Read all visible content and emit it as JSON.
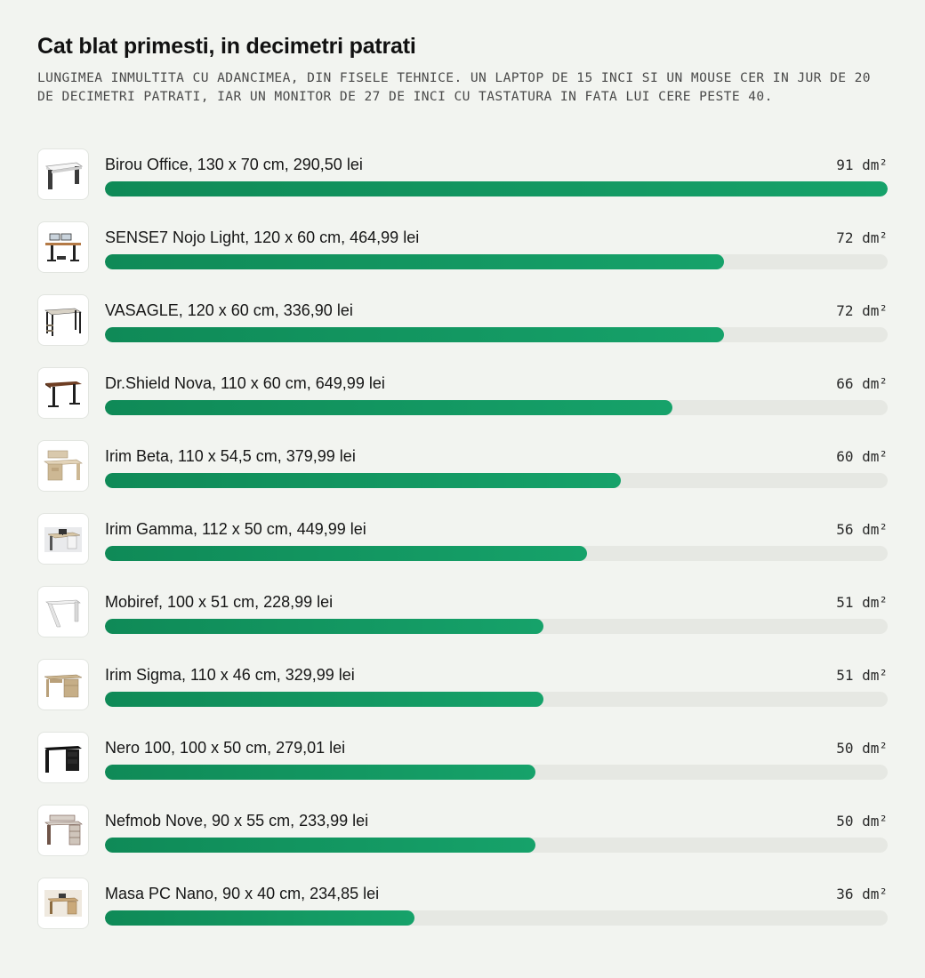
{
  "header": {
    "title": "Cat blat primesti, in decimetri patrati",
    "subtitle": "LUNGIMEA INMULTITA CU ADANCIMEA, DIN FISELE TEHNICE. UN LAPTOP DE 15 INCI SI UN MOUSE CER IN JUR DE 20 DE DECIMETRI PATRATI, IAR UN MONITOR DE 27 DE INCI CU TASTATURA IN FATA LUI CERE PESTE 40."
  },
  "colors": {
    "bar_fill_start": "#0f8a57",
    "bar_fill_end": "#16a26a",
    "bar_track": "#e6e8e3",
    "background": "#f2f4f0"
  },
  "chart_data": {
    "type": "bar",
    "orientation": "horizontal",
    "title": "Cat blat primesti, in decimetri patrati",
    "subtitle": "LUNGIMEA INMULTITA CU ADANCIMEA, DIN FISELE TEHNICE. UN LAPTOP DE 15 INCI SI UN MOUSE CER IN JUR DE 20 DE DECIMETRI PATRATI, IAR UN MONITOR DE 27 DE INCI CU TASTATURA IN FATA LUI CERE PESTE 40.",
    "unit": "dm²",
    "xlim": [
      0,
      91
    ],
    "grid": false,
    "categories": [
      "Birou Office, 130 x 70 cm, 290,50 lei",
      "SENSE7 Nojo Light, 120 x 60 cm, 464,99 lei",
      "VASAGLE, 120 x 60 cm, 336,90 lei",
      "Dr.Shield Nova, 110 x 60 cm, 649,99 lei",
      "Irim Beta, 110 x 54,5 cm, 379,99 lei",
      "Irim Gamma, 112 x 50 cm, 449,99 lei",
      "Mobiref, 100 x 51 cm, 228,99 lei",
      "Irim Sigma, 110 x 46 cm, 329,99 lei",
      "Nero 100, 100 x 50 cm, 279,01 lei",
      "Nefmob Nove, 90 x 55 cm, 233,99 lei",
      "Masa PC Nano, 90 x 40 cm, 234,85 lei"
    ],
    "values": [
      91,
      72,
      72,
      66,
      60,
      56,
      51,
      51,
      50,
      50,
      36
    ],
    "value_labels": [
      "91 dm²",
      "72 dm²",
      "72 dm²",
      "66 dm²",
      "60 dm²",
      "56 dm²",
      "51 dm²",
      "51 dm²",
      "50 dm²",
      "50 dm²",
      "36 dm²"
    ],
    "thumbnail_icons": [
      "white-desk-icon",
      "standing-desk-monitors-icon",
      "metal-frame-desk-icon",
      "height-adjustable-desk-icon",
      "desk-with-hutch-icon",
      "corner-desk-icon",
      "white-slanted-desk-icon",
      "wood-desk-with-cabinet-icon",
      "black-desk-icon",
      "desk-with-shelves-icon",
      "small-desk-icon"
    ]
  }
}
